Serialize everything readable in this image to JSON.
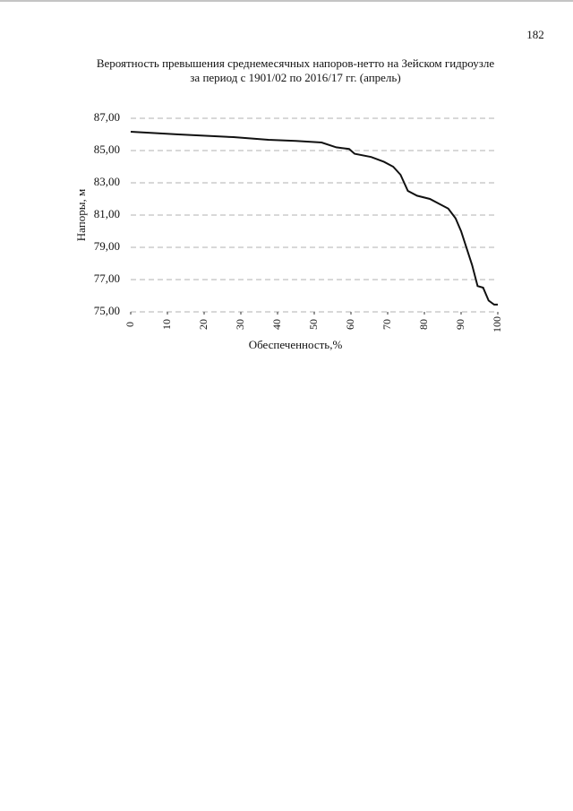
{
  "page_number": "182",
  "chart_data": {
    "type": "line",
    "title": "Вероятность превышения среднемесячных напоров-нетто на Зейском гидроузле",
    "subtitle": "за период с 1901/02 по 2016/17 гг. (апрель)",
    "x_label": "Обеспеченность,%",
    "y_label": "Напоры, м",
    "x": [
      0,
      13,
      28,
      37.5,
      45,
      52,
      56,
      59.5,
      61,
      65.5,
      69,
      71.5,
      73.5,
      75.5,
      78,
      81.5,
      84,
      86.5,
      88.5,
      90,
      91,
      93,
      94.5,
      96,
      97.5,
      99,
      100
    ],
    "series": [
      {
        "color": "#111111",
        "values": [
          86.17,
          86.0,
          85.83,
          85.67,
          85.6,
          85.5,
          85.2,
          85.1,
          84.8,
          84.6,
          84.3,
          84.0,
          83.5,
          82.5,
          82.2,
          82.0,
          81.7,
          81.4,
          80.8,
          80.0,
          79.3,
          77.9,
          76.6,
          76.5,
          75.7,
          75.45,
          75.45
        ]
      }
    ],
    "xlim": [
      0,
      100
    ],
    "xticks": [
      0,
      10,
      20,
      30,
      40,
      50,
      60,
      70,
      80,
      90,
      100
    ],
    "ylim": [
      75,
      87
    ],
    "yticks": [
      {
        "value": 75,
        "label": "75,00"
      },
      {
        "value": 77,
        "label": "77,00"
      },
      {
        "value": 79,
        "label": "79,00"
      },
      {
        "value": 81,
        "label": "81,00"
      },
      {
        "value": 83,
        "label": "83,00"
      },
      {
        "value": 85,
        "label": "85,00"
      },
      {
        "value": 87,
        "label": "87,00"
      }
    ],
    "grid": true
  }
}
